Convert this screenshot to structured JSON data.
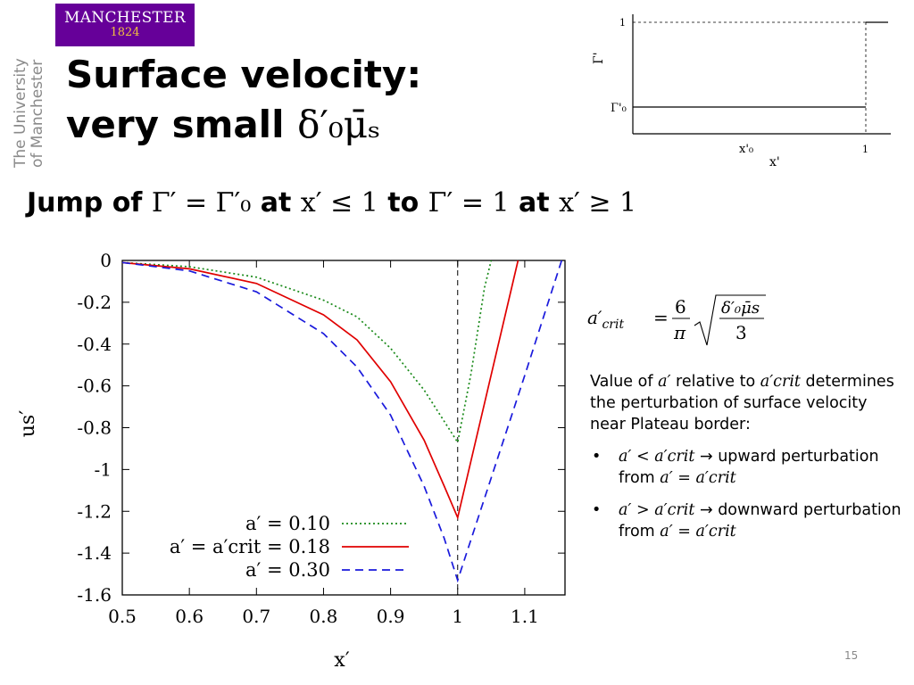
{
  "logo": {
    "name": "MANCHESTER",
    "year": "1824"
  },
  "university_vertical": [
    "The University",
    "of Manchester"
  ],
  "title": {
    "line1": "Surface velocity:",
    "line2_text": "very small ",
    "line2_math": "δ′₀μ̄ₛ"
  },
  "subtitle": {
    "jump": "Jump of ",
    "m1": "Γ′ = Γ′₀",
    "at1": " at ",
    "m2": "x′ ≤ 1",
    "to": " to ",
    "m3": "Γ′ = 1",
    "at2": " at ",
    "m4": "x′ ≥ 1"
  },
  "inset_chart": {
    "ylabel": "Γ'",
    "xlabel": "x'",
    "y_ticks": [
      "1",
      "Γ'₀"
    ],
    "x_ticks": [
      "x'₀",
      "1"
    ]
  },
  "formula": {
    "lhs": "a′crit",
    "num": "6",
    "den": "π",
    "sqrt_num": "δ′₀μ̄s",
    "sqrt_den": "3"
  },
  "explanation": {
    "p1_a": "Value of ",
    "p1_m1": "a′",
    "p1_b": " relative to ",
    "p1_m2": "a′crit",
    "p1_c": " determines the perturbation of surface velocity near Plateau border:",
    "bullets": [
      {
        "m1": "a′ < a′crit",
        "arrow": " → ",
        "t1": "upward perturbation from ",
        "m2": "a′ = a′crit"
      },
      {
        "m1": "a′ > a′crit",
        "arrow": " → ",
        "t1": "downward perturbation from ",
        "m2": "a′ = a′crit"
      }
    ],
    "bullet_char": "•"
  },
  "page_number": "15",
  "chart_data": {
    "type": "line",
    "xlabel": "x′",
    "ylabel": "us′",
    "xlim": [
      0.5,
      1.16
    ],
    "ylim": [
      -1.6,
      0
    ],
    "x_ticks": [
      "0.5",
      "0.6",
      "0.7",
      "0.8",
      "0.9",
      "1",
      "1.1"
    ],
    "y_ticks": [
      "0",
      "-0.2",
      "-0.4",
      "-0.6",
      "-0.8",
      "-1",
      "-1.2",
      "-1.4",
      "-1.6"
    ],
    "legend_placement": "bottom-right",
    "legend": [
      "a′ = 0.10",
      "a′ = a′crit = 0.18",
      "a′ = 0.30"
    ],
    "series": [
      {
        "name": "a′ = 0.10",
        "color": "#1a8a1a",
        "dash": "dotted",
        "points": [
          [
            0.5,
            -0.01
          ],
          [
            0.6,
            -0.03
          ],
          [
            0.7,
            -0.08
          ],
          [
            0.8,
            -0.19
          ],
          [
            0.85,
            -0.27
          ],
          [
            0.9,
            -0.42
          ],
          [
            0.95,
            -0.62
          ],
          [
            0.98,
            -0.77
          ],
          [
            1.0,
            -0.87
          ],
          [
            1.02,
            -0.54
          ],
          [
            1.04,
            -0.13
          ],
          [
            1.05,
            0.0
          ]
        ]
      },
      {
        "name": "a′ = a′crit = 0.18",
        "color": "#e00000",
        "dash": "solid",
        "points": [
          [
            0.5,
            -0.01
          ],
          [
            0.6,
            -0.04
          ],
          [
            0.7,
            -0.11
          ],
          [
            0.8,
            -0.26
          ],
          [
            0.85,
            -0.38
          ],
          [
            0.9,
            -0.58
          ],
          [
            0.95,
            -0.86
          ],
          [
            0.98,
            -1.08
          ],
          [
            1.0,
            -1.23
          ],
          [
            1.03,
            -0.82
          ],
          [
            1.06,
            -0.41
          ],
          [
            1.09,
            0.0
          ]
        ]
      },
      {
        "name": "a′ = 0.30",
        "color": "#1a1adc",
        "dash": "dashed",
        "points": [
          [
            0.5,
            -0.01
          ],
          [
            0.6,
            -0.05
          ],
          [
            0.7,
            -0.15
          ],
          [
            0.8,
            -0.35
          ],
          [
            0.85,
            -0.51
          ],
          [
            0.9,
            -0.74
          ],
          [
            0.95,
            -1.08
          ],
          [
            0.98,
            -1.33
          ],
          [
            1.0,
            -1.53
          ],
          [
            1.05,
            -1.04
          ],
          [
            1.1,
            -0.55
          ],
          [
            1.155,
            0.0
          ]
        ]
      }
    ]
  }
}
